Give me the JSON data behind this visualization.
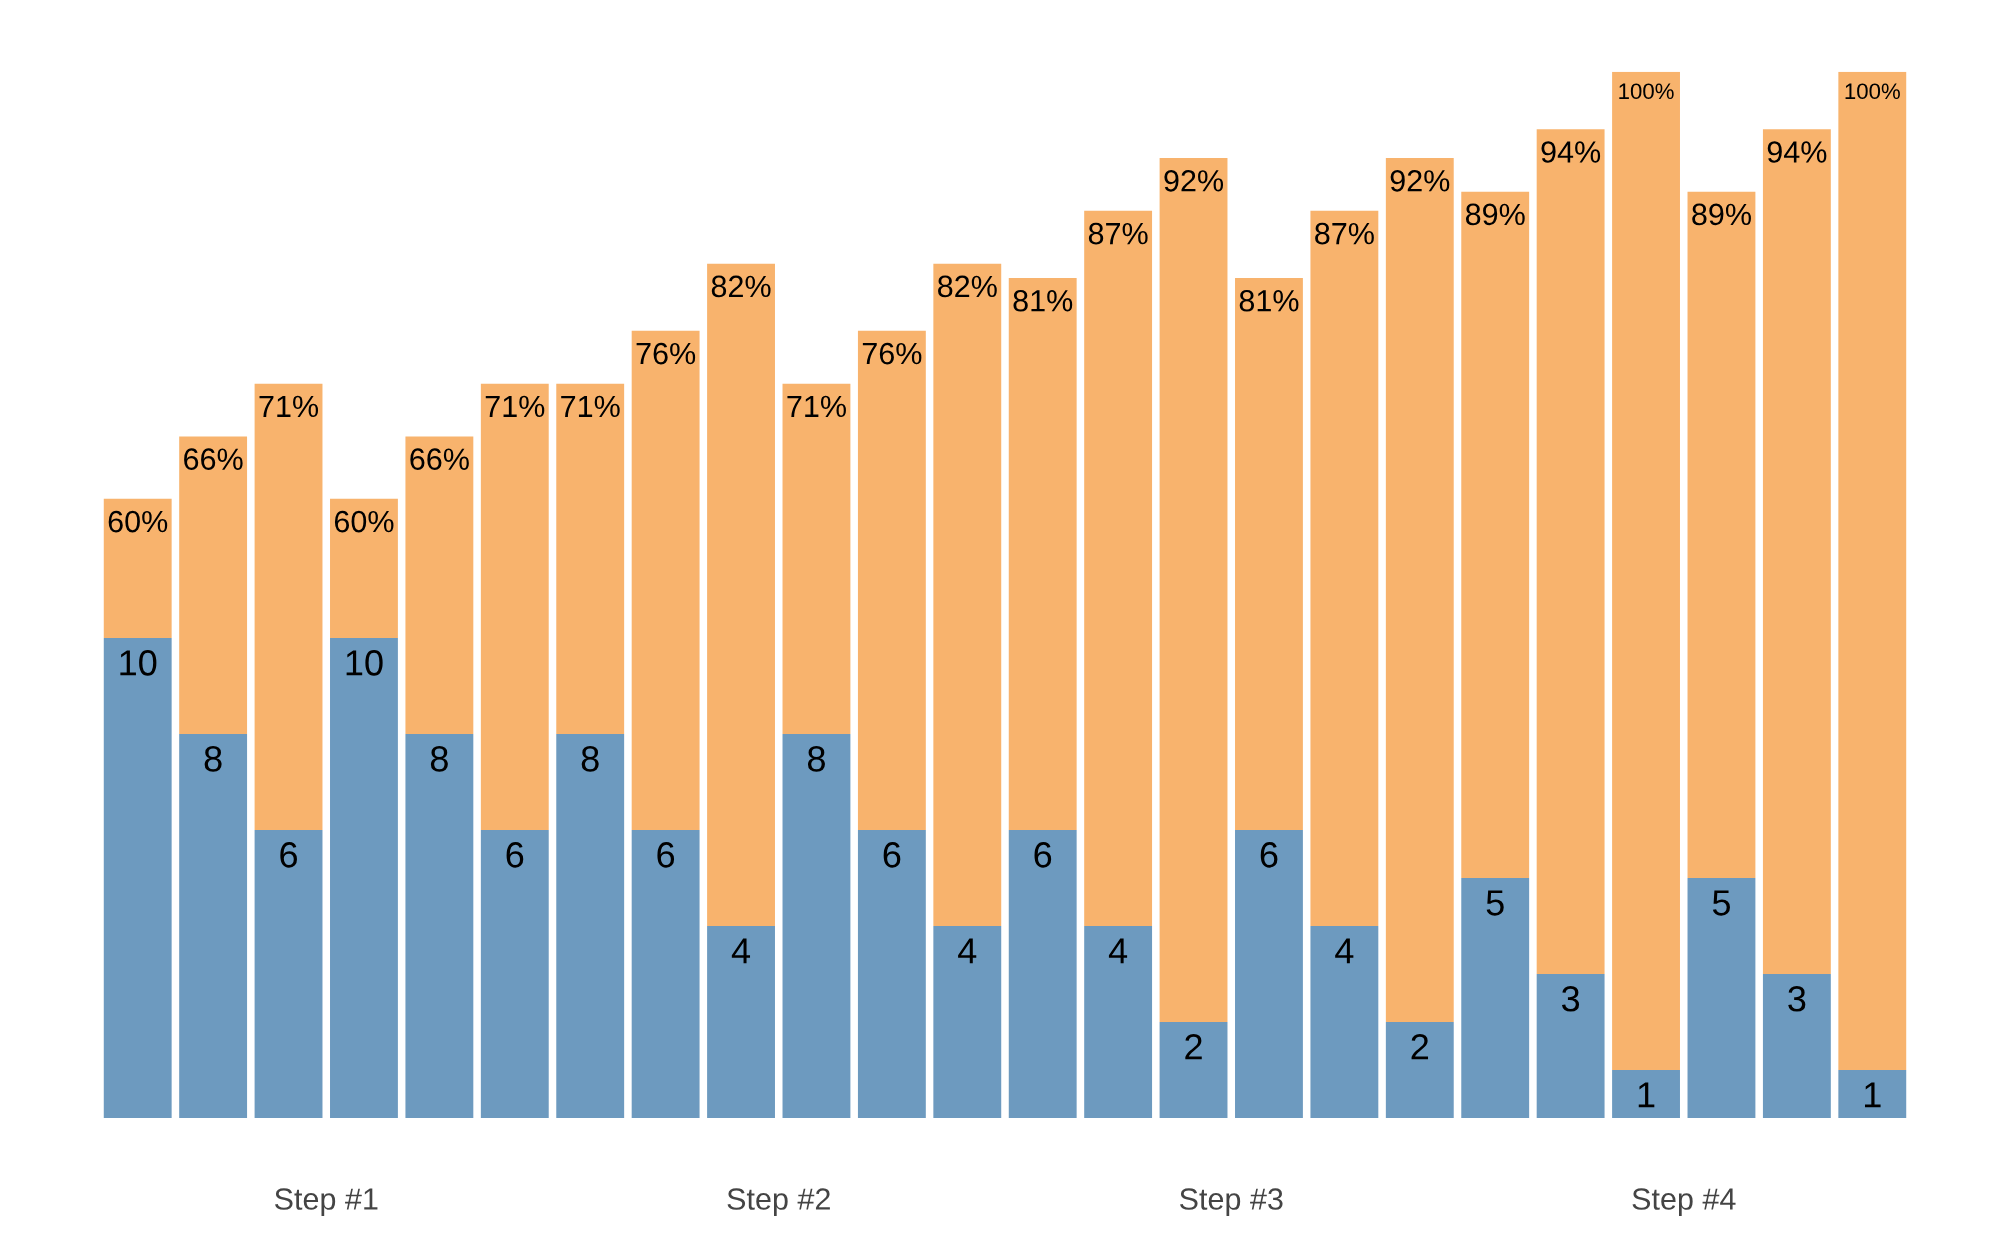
{
  "chart_data": {
    "type": "bar",
    "stacked": true,
    "tick_labels": false,
    "categories": [
      null,
      null,
      null,
      null,
      null,
      null,
      null,
      null,
      null,
      null,
      null,
      null,
      null,
      null,
      null,
      null,
      null,
      null,
      null,
      null,
      null,
      null,
      null,
      null
    ],
    "ylim": [
      0,
      21.8
    ],
    "series": [
      {
        "color": "#6d9abf",
        "values": [
          10,
          8,
          6,
          10,
          8,
          6,
          8,
          6,
          4,
          8,
          6,
          4,
          6,
          4,
          2,
          6,
          4,
          2,
          5,
          3,
          1,
          5,
          3,
          1
        ],
        "data_labels": true
      },
      {
        "color": "#f8b36d",
        "values": [
          2.9,
          6.2,
          9.3,
          2.9,
          6.2,
          9.3,
          7.3,
          10.4,
          13.8,
          7.3,
          10.4,
          13.8,
          11.5,
          14.9,
          18.0,
          11.5,
          14.9,
          18.0,
          14.3,
          17.6,
          20.8,
          14.3,
          17.6,
          20.8
        ]
      }
    ],
    "annotations": [
      "60%",
      "66%",
      "71%",
      "60%",
      "66%",
      "71%",
      "71%",
      "76%",
      "82%",
      "71%",
      "76%",
      "82%",
      "81%",
      "87%",
      "92%",
      "81%",
      "87%",
      "92%",
      "89%",
      "94%",
      "100%",
      "89%",
      "94%",
      "100%",
      "Step #1",
      "Step #2",
      "Step #3",
      "Step #4"
    ]
  }
}
